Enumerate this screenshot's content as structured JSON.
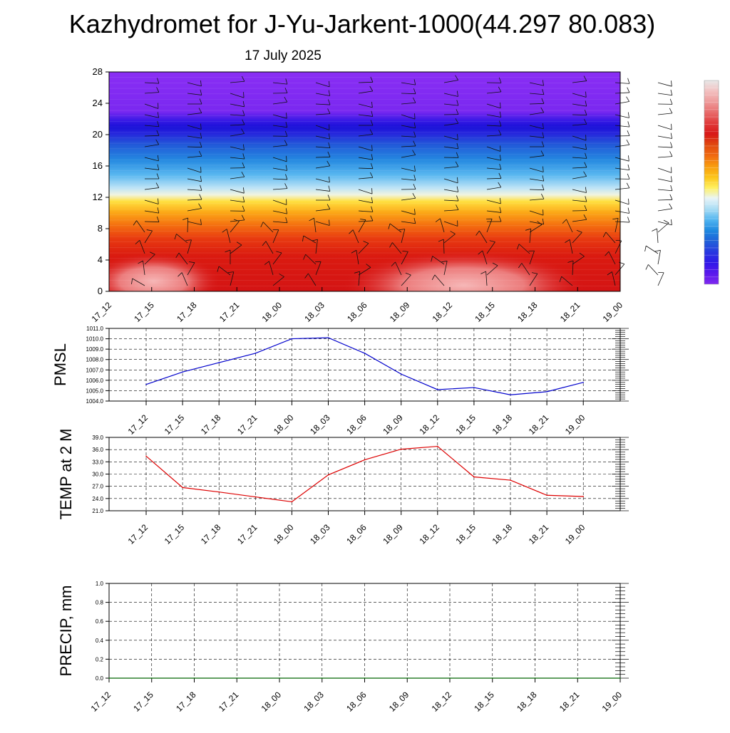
{
  "title": "Kazhydromet for J-Yu-Jarkent-1000(44.297 80.083)",
  "date": "17 July 2025",
  "time_labels": [
    "17_12",
    "17_15",
    "17_18",
    "17_21",
    "18_00",
    "18_03",
    "18_06",
    "18_09",
    "18_12",
    "18_15",
    "18_18",
    "18_21",
    "19_00"
  ],
  "chart_data": [
    {
      "type": "heatmap",
      "name": "vertical-section",
      "xlabel": "",
      "ylabel": "",
      "y_ticks": [
        0,
        4,
        8,
        12,
        16,
        20,
        24,
        28
      ],
      "ylim": [
        0,
        28
      ],
      "x": [
        "17_12",
        "17_15",
        "17_18",
        "17_21",
        "18_00",
        "18_03",
        "18_06",
        "18_09",
        "18_12",
        "18_15",
        "18_18",
        "18_21",
        "19_00"
      ],
      "colorbar": [
        "#e8e8e8",
        "#f2c0c0",
        "#ee9a9a",
        "#e86a6a",
        "#e03a3a",
        "#d81818",
        "#e04a10",
        "#f06a10",
        "#f89c10",
        "#fcc418",
        "#fff060",
        "#e8f4f8",
        "#a8dcf4",
        "#50b4f0",
        "#1e88e0",
        "#2060d8",
        "#2838e0",
        "#3018e8",
        "#5a18ec",
        "#8028f0"
      ],
      "wind_barbs": true
    },
    {
      "type": "line",
      "name": "pmsl",
      "xlabel": "",
      "ylabel": "PMSL",
      "ylim": [
        1004.0,
        1011.0
      ],
      "y_ticks": [
        "1004.0",
        "1005.0",
        "1006.0",
        "1007.0",
        "1008.0",
        "1009.0",
        "1010.0",
        "1011.0"
      ],
      "x": [
        "17_12",
        "17_15",
        "17_18",
        "17_21",
        "18_00",
        "18_03",
        "18_06",
        "18_09",
        "18_12",
        "18_15",
        "18_18",
        "18_21",
        "19_00"
      ],
      "grid": true,
      "series": [
        {
          "color": "#0000cc",
          "values": [
            1005.6,
            1006.8,
            1007.7,
            1008.6,
            1010.0,
            1010.1,
            1008.6,
            1006.6,
            1005.1,
            1005.3,
            1004.6,
            1004.9,
            1005.8
          ]
        }
      ]
    },
    {
      "type": "line",
      "name": "temp2m",
      "xlabel": "",
      "ylabel": "TEMP at 2 M",
      "ylim": [
        21.0,
        39.0
      ],
      "y_ticks": [
        "21.0",
        "24.0",
        "27.0",
        "30.0",
        "33.0",
        "36.0",
        "39.0"
      ],
      "x": [
        "17_12",
        "17_15",
        "17_18",
        "17_21",
        "18_00",
        "18_03",
        "18_06",
        "18_09",
        "18_12",
        "18_15",
        "18_18",
        "18_21",
        "19_00"
      ],
      "grid": true,
      "series": [
        {
          "color": "#dd0000",
          "values": [
            34.4,
            26.7,
            25.6,
            24.4,
            23.2,
            29.8,
            33.5,
            36.1,
            36.8,
            29.3,
            28.5,
            24.8,
            24.5
          ]
        }
      ]
    },
    {
      "type": "line",
      "name": "precip",
      "xlabel": "",
      "ylabel": "PRECIP, mm",
      "ylim": [
        0.0,
        1.0
      ],
      "y_ticks": [
        "0.0",
        "0.2",
        "0.4",
        "0.6",
        "0.8",
        "1.0"
      ],
      "x": [
        "17_12",
        "17_15",
        "17_18",
        "17_21",
        "18_00",
        "18_03",
        "18_06",
        "18_09",
        "18_12",
        "18_15",
        "18_18",
        "18_21",
        "19_00"
      ],
      "grid": true,
      "series": [
        {
          "color": "#006600",
          "values": [
            0,
            0,
            0,
            0,
            0,
            0,
            0,
            0,
            0,
            0,
            0,
            0,
            0
          ]
        }
      ]
    }
  ]
}
